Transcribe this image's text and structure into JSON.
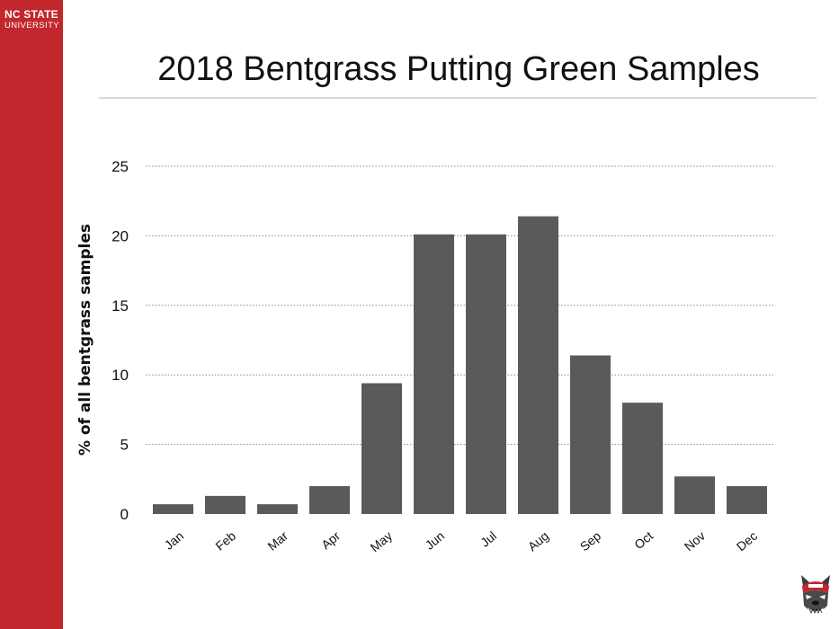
{
  "branding": {
    "line1": "NC STATE",
    "line2": "UNIVERSITY",
    "band_color": "#c1272d",
    "mascot_icon": "wolf-mascot-icon"
  },
  "slide": {
    "title": "2018 Bentgrass Putting Green Samples"
  },
  "chart_data": {
    "type": "bar",
    "title": "",
    "xlabel": "",
    "ylabel": "% of all bentgrass samples",
    "categories": [
      "Jan",
      "Feb",
      "Mar",
      "Apr",
      "May",
      "Jun",
      "Jul",
      "Aug",
      "Sep",
      "Oct",
      "Nov",
      "Dec"
    ],
    "values": [
      0.7,
      1.3,
      0.7,
      2.0,
      9.4,
      20.1,
      20.1,
      21.4,
      11.4,
      8.0,
      2.7,
      2.0
    ],
    "ylim": [
      0,
      25
    ],
    "yticks": [
      0,
      5,
      10,
      15,
      20,
      25
    ],
    "grid": "horizontal dotted",
    "bar_color": "#5a5a5c"
  }
}
